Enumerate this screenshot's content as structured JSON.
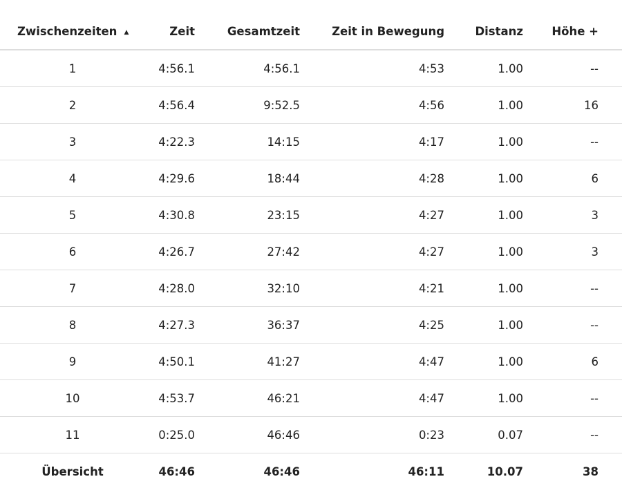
{
  "columns": [
    "Zwischenzeiten",
    "Zeit",
    "Gesamtzeit",
    "Zeit in Bewegung",
    "Distanz",
    "Höhe +"
  ],
  "sort_icon": "sort-ascending-icon",
  "rows": [
    [
      "1",
      "4:56.1",
      "4:56.1",
      "4:53",
      "1.00",
      "--"
    ],
    [
      "2",
      "4:56.4",
      "9:52.5",
      "4:56",
      "1.00",
      "16"
    ],
    [
      "3",
      "4:22.3",
      "14:15",
      "4:17",
      "1.00",
      "--"
    ],
    [
      "4",
      "4:29.6",
      "18:44",
      "4:28",
      "1.00",
      "6"
    ],
    [
      "5",
      "4:30.8",
      "23:15",
      "4:27",
      "1.00",
      "3"
    ],
    [
      "6",
      "4:26.7",
      "27:42",
      "4:27",
      "1.00",
      "3"
    ],
    [
      "7",
      "4:28.0",
      "32:10",
      "4:21",
      "1.00",
      "--"
    ],
    [
      "8",
      "4:27.3",
      "36:37",
      "4:25",
      "1.00",
      "--"
    ],
    [
      "9",
      "4:50.1",
      "41:27",
      "4:47",
      "1.00",
      "6"
    ],
    [
      "10",
      "4:53.7",
      "46:21",
      "4:47",
      "1.00",
      "--"
    ],
    [
      "11",
      "0:25.0",
      "46:46",
      "0:23",
      "0.07",
      "--"
    ]
  ],
  "summary": [
    "Übersicht",
    "46:46",
    "46:46",
    "46:11",
    "10.07",
    "38"
  ]
}
